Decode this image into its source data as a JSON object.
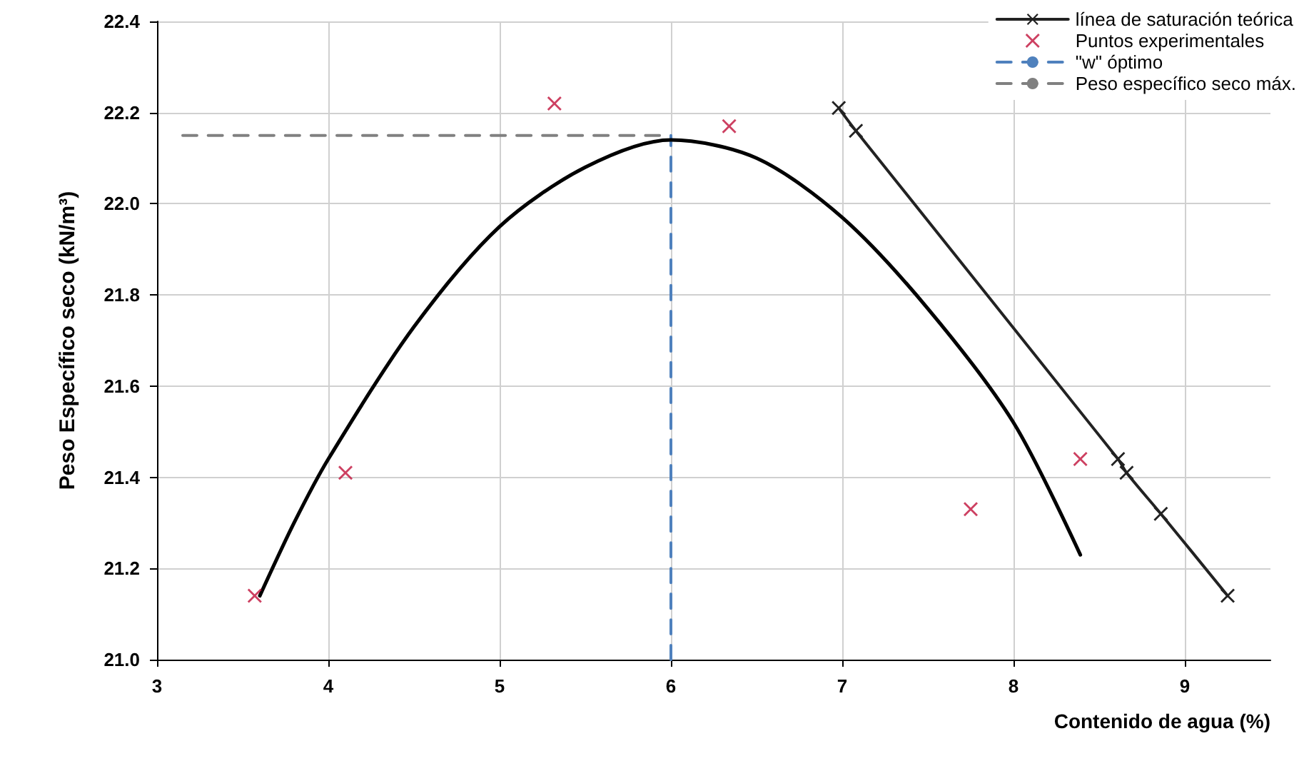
{
  "chart_data": {
    "type": "scatter",
    "xlabel": "Contenido de agua (%)",
    "ylabel": "Peso Específico seco (kN/m³)",
    "xlim": [
      3,
      9.5
    ],
    "xticks": [
      3,
      4,
      5,
      6,
      7,
      8,
      9
    ],
    "ylim": [
      21.0,
      22.4
    ],
    "yticks": [
      {
        "value": 21.0,
        "label": "21.0"
      },
      {
        "value": 21.2,
        "label": "21.2"
      },
      {
        "value": 21.4,
        "label": "21.4"
      },
      {
        "value": 21.6,
        "label": "21.6"
      },
      {
        "value": 21.8,
        "label": "21.8"
      },
      {
        "value": 22.0,
        "label": "22.0"
      },
      {
        "value": 22.2,
        "label": "22.2"
      },
      {
        "value": 22.4,
        "label": "22.4"
      }
    ],
    "grid": true,
    "legend": "top right",
    "series": [
      {
        "name": "línea de saturación teórica",
        "type": "line",
        "marker": "cross",
        "line_style": "solid",
        "color": "#222222",
        "x": [
          6.98,
          7.08,
          8.61,
          8.66,
          8.86,
          9.25
        ],
        "values": [
          22.21,
          22.16,
          21.44,
          21.41,
          21.32,
          21.14
        ]
      },
      {
        "name": "Puntos experimentales",
        "marker": "cross",
        "color": "#c0103a",
        "x": [
          3.57,
          4.1,
          5.32,
          6.34,
          7.75,
          8.39
        ],
        "values": [
          21.14,
          21.41,
          22.22,
          22.17,
          21.33,
          21.44
        ]
      },
      {
        "name": "\"w\" óptimo",
        "type": "line",
        "marker": "none",
        "line_style": "dashed",
        "color": "#4f81bd",
        "x": [
          6,
          6
        ],
        "values": [
          21.0,
          22.15
        ]
      },
      {
        "name": "Peso específico seco máx.",
        "type": "line",
        "marker": "none",
        "line_style": "dashed",
        "color": "#808080",
        "x": [
          3.15,
          6
        ],
        "values": [
          22.15,
          22.15
        ]
      },
      {
        "type": "line",
        "marker": "none",
        "line_style": "solid",
        "color": "#000000",
        "x": [
          3.6,
          3.8,
          4,
          4.5,
          5,
          5.5,
          6,
          6.5,
          7,
          7.5,
          8,
          8.39
        ],
        "values": [
          21.14,
          21.3,
          21.44,
          21.73,
          21.95,
          22.08,
          22.14,
          22.1,
          21.97,
          21.77,
          21.52,
          21.23
        ]
      }
    ]
  }
}
